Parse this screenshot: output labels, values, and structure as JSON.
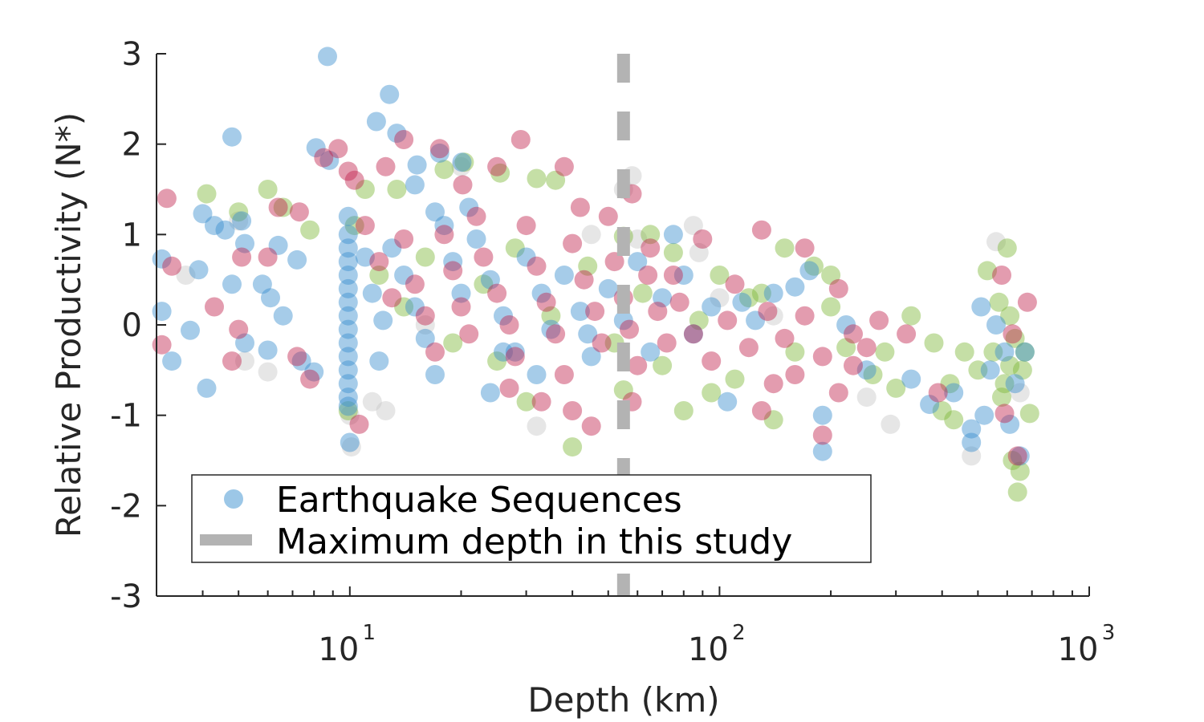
{
  "chart_data": {
    "type": "scatter",
    "title": "",
    "xlabel": "Depth (km)",
    "ylabel": "Relative Productivity (N*)",
    "xscale": "log",
    "xlim": [
      3,
      1000
    ],
    "ylim": [
      -3,
      3
    ],
    "xticks": [
      {
        "base": "10",
        "exp": "1",
        "value": 10
      },
      {
        "base": "10",
        "exp": "2",
        "value": 100
      },
      {
        "base": "10",
        "exp": "3",
        "value": 1000
      }
    ],
    "yticks": [
      "3",
      "2",
      "1",
      "0",
      "-1",
      "-2",
      "-3"
    ],
    "grid": false,
    "legend_position": "bottom-left",
    "legend": [
      {
        "label": "Earthquake Sequences",
        "kind": "marker",
        "color": "#3a8fcf"
      },
      {
        "label": "Maximum depth in this study",
        "kind": "dashed-line",
        "color": "#b3b3b3"
      }
    ],
    "vertical_line": {
      "x": 55,
      "color": "#b3b3b3",
      "style": "dashed"
    },
    "series": [
      {
        "color": "#3a8fcf",
        "points": [
          [
            8.7,
            2.97
          ],
          [
            12.8,
            2.55
          ],
          [
            4.8,
            2.08
          ],
          [
            11.8,
            2.25
          ],
          [
            13.4,
            2.12
          ],
          [
            8.1,
            1.96
          ],
          [
            8.8,
            1.82
          ],
          [
            15.2,
            1.77
          ],
          [
            17.5,
            1.9
          ],
          [
            20.1,
            1.8
          ],
          [
            3.1,
            0.73
          ],
          [
            3.1,
            0.15
          ],
          [
            3.3,
            -0.4
          ],
          [
            4.0,
            1.23
          ],
          [
            4.3,
            1.1
          ],
          [
            4.6,
            1.05
          ],
          [
            5.1,
            1.15
          ],
          [
            5.2,
            0.9
          ],
          [
            3.9,
            0.61
          ],
          [
            4.8,
            0.45
          ],
          [
            5.8,
            0.45
          ],
          [
            6.4,
            0.88
          ],
          [
            7.2,
            0.72
          ],
          [
            6.1,
            0.3
          ],
          [
            6.6,
            0.1
          ],
          [
            3.7,
            -0.06
          ],
          [
            5.2,
            -0.2
          ],
          [
            6.0,
            -0.28
          ],
          [
            7.4,
            -0.4
          ],
          [
            8.0,
            -0.52
          ],
          [
            4.1,
            -0.7
          ],
          [
            9.9,
            1.2
          ],
          [
            9.9,
            1.0
          ],
          [
            9.9,
            0.85
          ],
          [
            9.9,
            0.7
          ],
          [
            9.9,
            0.55
          ],
          [
            9.9,
            0.4
          ],
          [
            9.9,
            0.25
          ],
          [
            9.9,
            0.1
          ],
          [
            9.9,
            -0.05
          ],
          [
            9.9,
            -0.2
          ],
          [
            9.9,
            -0.35
          ],
          [
            9.9,
            -0.5
          ],
          [
            9.9,
            -0.65
          ],
          [
            9.9,
            -0.8
          ],
          [
            9.9,
            -0.9
          ],
          [
            10.0,
            -1.3
          ],
          [
            11.0,
            0.75
          ],
          [
            11.5,
            0.35
          ],
          [
            12.3,
            0.05
          ],
          [
            12.0,
            -0.4
          ],
          [
            13.0,
            0.85
          ],
          [
            14.0,
            0.55
          ],
          [
            15.0,
            0.2
          ],
          [
            16.0,
            -0.15
          ],
          [
            17.0,
            -0.55
          ],
          [
            18.0,
            1.1
          ],
          [
            19.0,
            0.7
          ],
          [
            20.0,
            0.35
          ],
          [
            22.0,
            0.95
          ],
          [
            24.0,
            0.5
          ],
          [
            26.0,
            0.1
          ],
          [
            28.0,
            -0.3
          ],
          [
            30.0,
            0.75
          ],
          [
            33.0,
            0.35
          ],
          [
            35.0,
            -0.05
          ],
          [
            38.0,
            0.55
          ],
          [
            42.0,
            0.15
          ],
          [
            45.0,
            -0.35
          ],
          [
            50.0,
            0.4
          ],
          [
            55.0,
            0.05
          ],
          [
            60.0,
            0.7
          ],
          [
            65.0,
            -0.3
          ],
          [
            70.0,
            0.3
          ],
          [
            75.0,
            1.0
          ],
          [
            80.0,
            0.55
          ],
          [
            85.0,
            -0.1
          ],
          [
            95.0,
            0.2
          ],
          [
            105.0,
            -0.85
          ],
          [
            115.0,
            0.25
          ],
          [
            125.0,
            0.05
          ],
          [
            140.0,
            0.35
          ],
          [
            160.0,
            0.42
          ],
          [
            175.0,
            0.6
          ],
          [
            190.0,
            -1.0
          ],
          [
            190.0,
            -1.4
          ],
          [
            220.0,
            0.0
          ],
          [
            250.0,
            -0.5
          ],
          [
            330.0,
            -0.6
          ],
          [
            370.0,
            -0.88
          ],
          [
            430.0,
            -0.75
          ],
          [
            480.0,
            -1.3
          ],
          [
            480.0,
            -1.15
          ],
          [
            510.0,
            0.2
          ],
          [
            520.0,
            -1.0
          ],
          [
            540.0,
            -0.5
          ],
          [
            560.0,
            0.0
          ],
          [
            590.0,
            -0.3
          ],
          [
            610.0,
            -1.1
          ],
          [
            630.0,
            -0.65
          ],
          [
            650.0,
            -1.45
          ],
          [
            670.0,
            -0.3
          ],
          [
            24.0,
            -0.75
          ],
          [
            32.0,
            -0.55
          ],
          [
            15.0,
            1.55
          ],
          [
            17.0,
            1.25
          ],
          [
            21.0,
            1.3
          ],
          [
            26.0,
            -0.3
          ],
          [
            44.0,
            -0.1
          ]
        ]
      },
      {
        "color": "#c2244e",
        "points": [
          [
            3.2,
            1.4
          ],
          [
            3.3,
            0.65
          ],
          [
            3.1,
            -0.22
          ],
          [
            4.3,
            0.2
          ],
          [
            5.1,
            0.75
          ],
          [
            5.0,
            -0.05
          ],
          [
            4.8,
            -0.4
          ],
          [
            6.0,
            0.75
          ],
          [
            6.4,
            1.3
          ],
          [
            7.3,
            1.25
          ],
          [
            7.8,
            -0.6
          ],
          [
            7.2,
            -0.35
          ],
          [
            8.5,
            1.85
          ],
          [
            9.3,
            1.95
          ],
          [
            9.9,
            1.7
          ],
          [
            10.3,
            1.6
          ],
          [
            10.6,
            -1.1
          ],
          [
            12.5,
            1.75
          ],
          [
            14.0,
            2.05
          ],
          [
            17.5,
            1.95
          ],
          [
            20.2,
            1.55
          ],
          [
            25.0,
            1.75
          ],
          [
            29.0,
            2.05
          ],
          [
            38.0,
            1.75
          ],
          [
            42.0,
            1.3
          ],
          [
            50.0,
            1.2
          ],
          [
            58.0,
            1.45
          ],
          [
            65.0,
            0.85
          ],
          [
            75.0,
            0.55
          ],
          [
            90.0,
            0.95
          ],
          [
            110.0,
            0.45
          ],
          [
            130.0,
            1.05
          ],
          [
            170.0,
            0.85
          ],
          [
            130.0,
            -0.95
          ],
          [
            140.0,
            -0.65
          ],
          [
            160.0,
            -0.55
          ],
          [
            190.0,
            -1.22
          ],
          [
            210.0,
            -0.75
          ],
          [
            230.0,
            -0.45
          ],
          [
            250.0,
            -0.25
          ],
          [
            270.0,
            0.05
          ],
          [
            320.0,
            -0.1
          ],
          [
            390.0,
            -0.75
          ],
          [
            580.0,
            0.55
          ],
          [
            590.0,
            -0.98
          ],
          [
            620.0,
            -0.1
          ],
          [
            640.0,
            -1.45
          ],
          [
            680.0,
            0.25
          ],
          [
            11.0,
            1.1
          ],
          [
            12.0,
            0.7
          ],
          [
            13.0,
            0.3
          ],
          [
            14.0,
            0.95
          ],
          [
            15.0,
            0.45
          ],
          [
            16.0,
            0.1
          ],
          [
            17.0,
            -0.3
          ],
          [
            18.0,
            1.0
          ],
          [
            19.0,
            0.6
          ],
          [
            20.0,
            0.2
          ],
          [
            21.0,
            -0.1
          ],
          [
            22.0,
            1.2
          ],
          [
            23.0,
            0.75
          ],
          [
            25.0,
            0.35
          ],
          [
            27.0,
            0.0
          ],
          [
            28.0,
            -0.35
          ],
          [
            30.0,
            1.1
          ],
          [
            32.0,
            0.65
          ],
          [
            34.0,
            0.25
          ],
          [
            36.0,
            -0.1
          ],
          [
            38.0,
            -0.55
          ],
          [
            40.0,
            0.9
          ],
          [
            43.0,
            0.5
          ],
          [
            46.0,
            0.15
          ],
          [
            48.0,
            -0.2
          ],
          [
            52.0,
            0.7
          ],
          [
            55.0,
            0.3
          ],
          [
            57.0,
            -0.05
          ],
          [
            60.0,
            -0.45
          ],
          [
            64.0,
            0.55
          ],
          [
            68.0,
            0.15
          ],
          [
            72.0,
            -0.2
          ],
          [
            78.0,
            0.25
          ],
          [
            85.0,
            -0.1
          ],
          [
            95.0,
            -0.4
          ],
          [
            105.0,
            0.05
          ],
          [
            120.0,
            -0.25
          ],
          [
            135.0,
            0.15
          ],
          [
            150.0,
            -0.15
          ],
          [
            170.0,
            0.1
          ],
          [
            190.0,
            -0.35
          ],
          [
            210.0,
            0.4
          ],
          [
            230.0,
            -0.1
          ],
          [
            45.0,
            -1.12
          ],
          [
            27.0,
            -0.7
          ],
          [
            33.0,
            -0.85
          ],
          [
            40.0,
            -0.95
          ],
          [
            58.0,
            -0.85
          ]
        ]
      },
      {
        "color": "#7fb83a",
        "points": [
          [
            4.1,
            1.45
          ],
          [
            5.0,
            1.25
          ],
          [
            6.0,
            1.5
          ],
          [
            6.6,
            1.3
          ],
          [
            7.8,
            1.05
          ],
          [
            10.3,
            1.1
          ],
          [
            11.0,
            1.5
          ],
          [
            13.4,
            1.5
          ],
          [
            18.0,
            1.72
          ],
          [
            20.4,
            1.8
          ],
          [
            25.5,
            1.68
          ],
          [
            32.0,
            1.62
          ],
          [
            36.0,
            1.6
          ],
          [
            55.0,
            0.98
          ],
          [
            65.0,
            1.0
          ],
          [
            75.0,
            0.8
          ],
          [
            100.0,
            0.55
          ],
          [
            130.0,
            0.35
          ],
          [
            150.0,
            0.85
          ],
          [
            180.0,
            0.65
          ],
          [
            200.0,
            0.55
          ],
          [
            220.0,
            -0.25
          ],
          [
            280.0,
            -0.3
          ],
          [
            300.0,
            -0.7
          ],
          [
            330.0,
            0.1
          ],
          [
            380.0,
            -0.2
          ],
          [
            400.0,
            -0.95
          ],
          [
            420.0,
            -0.65
          ],
          [
            430.0,
            -1.05
          ],
          [
            460.0,
            -0.3
          ],
          [
            500.0,
            -0.5
          ],
          [
            530.0,
            0.6
          ],
          [
            550.0,
            -0.3
          ],
          [
            580.0,
            -0.8
          ],
          [
            600.0,
            0.85
          ],
          [
            610.0,
            0.1
          ],
          [
            620.0,
            -1.5
          ],
          [
            640.0,
            -1.85
          ],
          [
            650.0,
            -1.62
          ],
          [
            660.0,
            -0.5
          ],
          [
            690.0,
            -0.98
          ],
          [
            25.0,
            -0.4
          ],
          [
            30.0,
            -0.85
          ],
          [
            40.0,
            -1.35
          ],
          [
            55.0,
            -0.72
          ],
          [
            80.0,
            -0.95
          ],
          [
            95.0,
            -0.75
          ],
          [
            110.0,
            -0.6
          ],
          [
            140.0,
            -1.05
          ],
          [
            9.9,
            -0.95
          ],
          [
            12.0,
            0.55
          ],
          [
            14.0,
            0.2
          ],
          [
            16.0,
            0.75
          ],
          [
            19.0,
            -0.2
          ],
          [
            23.0,
            0.45
          ],
          [
            28.0,
            0.85
          ],
          [
            35.0,
            0.1
          ],
          [
            44.0,
            0.65
          ],
          [
            52.0,
            -0.2
          ],
          [
            62.0,
            0.35
          ],
          [
            70.0,
            -0.45
          ],
          [
            88.0,
            0.05
          ],
          [
            120.0,
            0.3
          ],
          [
            160.0,
            -0.3
          ],
          [
            200.0,
            0.2
          ],
          [
            260.0,
            -0.55
          ],
          [
            570.0,
            0.25
          ],
          [
            630.0,
            -0.15
          ],
          [
            670.0,
            -0.3
          ],
          [
            590.0,
            -0.65
          ],
          [
            610.0,
            -0.45
          ]
        ]
      },
      {
        "color": "#c8c8c8",
        "points": [
          [
            3.6,
            0.55
          ],
          [
            5.0,
            1.15
          ],
          [
            5.2,
            -0.4
          ],
          [
            6.0,
            -0.52
          ],
          [
            10.0,
            -1.0
          ],
          [
            10.1,
            -1.35
          ],
          [
            11.5,
            -0.85
          ],
          [
            12.5,
            -0.95
          ],
          [
            16.0,
            0.0
          ],
          [
            32.0,
            -1.12
          ],
          [
            55.0,
            1.5
          ],
          [
            58.0,
            1.65
          ],
          [
            60.0,
            0.95
          ],
          [
            85.0,
            1.1
          ],
          [
            88.0,
            0.8
          ],
          [
            250.0,
            -0.8
          ],
          [
            290.0,
            -1.1
          ],
          [
            480.0,
            -1.45
          ],
          [
            560.0,
            0.92
          ],
          [
            650.0,
            -0.75
          ],
          [
            20.0,
            1.75
          ],
          [
            45.0,
            1.0
          ],
          [
            100.0,
            0.3
          ],
          [
            140.0,
            0.1
          ]
        ]
      }
    ]
  }
}
